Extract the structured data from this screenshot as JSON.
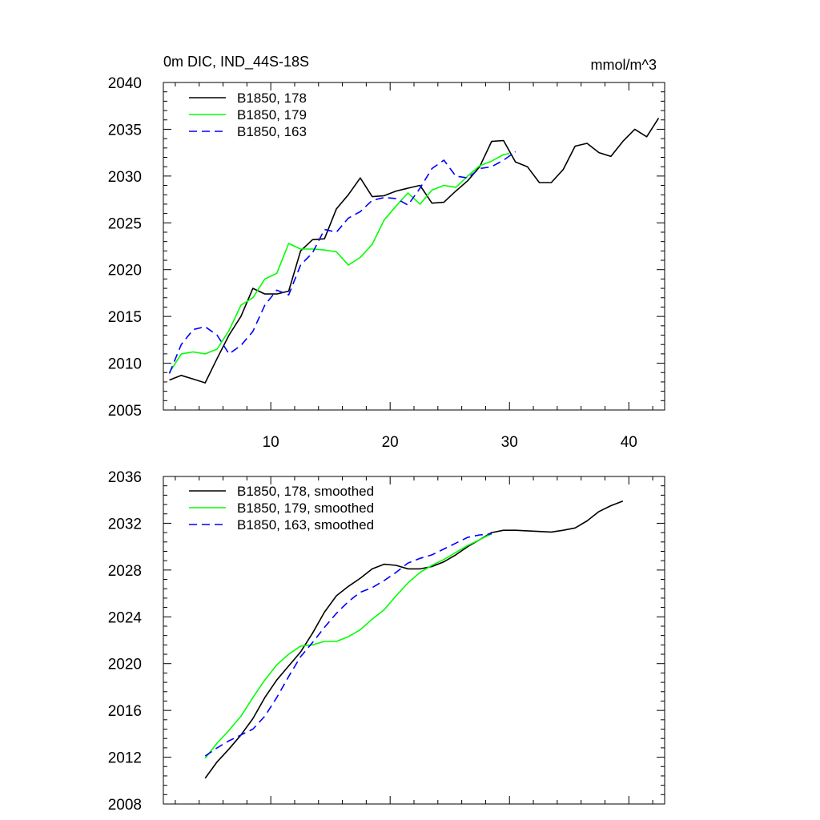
{
  "chart_data": [
    {
      "type": "line",
      "title_left": "0m DIC, IND_44S-18S",
      "title_right": "mmol/m^3",
      "xlim": [
        1,
        43
      ],
      "ylim": [
        2005,
        2040
      ],
      "xticks": [
        10,
        20,
        30,
        40
      ],
      "xtick_labels": [
        "10",
        "20",
        "30",
        "40"
      ],
      "yticks": [
        2005,
        2010,
        2015,
        2020,
        2025,
        2030,
        2035,
        2040
      ],
      "ytick_labels": [
        "2005",
        "2010",
        "2015",
        "2020",
        "2025",
        "2030",
        "2035",
        "2040"
      ],
      "series": [
        {
          "name": "B1850, 178",
          "color": "#000000",
          "dash": "solid",
          "x": [
            1.5,
            2.5,
            3.5,
            4.5,
            5.5,
            6.5,
            7.5,
            8.5,
            9.5,
            10.5,
            11.5,
            12.5,
            13.5,
            14.5,
            15.5,
            16.5,
            17.5,
            18.5,
            19.5,
            20.5,
            21.5,
            22.5,
            23.5,
            24.5,
            25.5,
            26.5,
            27.5,
            28.5,
            29.5,
            30.5,
            31.5,
            32.5,
            33.5,
            34.5,
            35.5,
            36.5,
            37.5,
            38.5,
            39.5,
            40.5,
            41.5,
            42.5
          ],
          "y": [
            2008.2,
            2008.7,
            2008.3,
            2007.9,
            2010.5,
            2013.0,
            2015.0,
            2018.0,
            2017.4,
            2017.4,
            2017.7,
            2022.0,
            2023.2,
            2023.3,
            2026.5,
            2028.0,
            2029.8,
            2027.8,
            2027.9,
            2028.4,
            2028.7,
            2029.0,
            2027.1,
            2027.2,
            2028.4,
            2029.5,
            2031.0,
            2033.7,
            2033.8,
            2031.5,
            2031.0,
            2029.3,
            2029.3,
            2030.7,
            2033.2,
            2033.5,
            2032.5,
            2032.1,
            2033.7,
            2035.0,
            2034.2,
            2036.2
          ]
        },
        {
          "name": "B1850, 179",
          "color": "#00ff00",
          "dash": "solid",
          "x": [
            1.5,
            2.5,
            3.5,
            4.5,
            5.5,
            6.5,
            7.5,
            8.5,
            9.5,
            10.5,
            11.5,
            12.5,
            13.5,
            14.5,
            15.5,
            16.5,
            17.5,
            18.5,
            19.5,
            20.5,
            21.5,
            22.5,
            23.5,
            24.5,
            25.5,
            26.5,
            27.5,
            28.5,
            29.5,
            30.0
          ],
          "y": [
            2009.0,
            2011.0,
            2011.2,
            2011.0,
            2011.5,
            2013.5,
            2016.2,
            2017.0,
            2019.0,
            2019.6,
            2022.8,
            2022.2,
            2022.2,
            2022.1,
            2021.9,
            2020.5,
            2021.3,
            2022.7,
            2025.3,
            2026.8,
            2028.2,
            2027.0,
            2028.5,
            2029.0,
            2028.8,
            2030.0,
            2031.1,
            2031.6,
            2032.3,
            2032.4
          ]
        },
        {
          "name": "B1850, 163",
          "color": "#0000ff",
          "dash": "dashed",
          "x": [
            1.5,
            2.5,
            3.5,
            4.5,
            5.5,
            6.5,
            7.5,
            8.5,
            9.5,
            10.5,
            11.5,
            12.5,
            13.5,
            14.5,
            15.5,
            16.5,
            17.5,
            18.5,
            19.5,
            20.5,
            21.5,
            22.5,
            23.5,
            24.5,
            25.5,
            26.5,
            27.5,
            28.5,
            29.5,
            30.5
          ],
          "y": [
            2008.9,
            2012.0,
            2013.6,
            2013.9,
            2013.0,
            2011.0,
            2011.9,
            2013.4,
            2016.2,
            2017.8,
            2017.3,
            2020.5,
            2021.8,
            2024.3,
            2024.0,
            2025.5,
            2026.2,
            2027.4,
            2027.7,
            2027.6,
            2026.9,
            2028.7,
            2030.8,
            2031.7,
            2030.0,
            2029.8,
            2030.8,
            2031.0,
            2031.7,
            2032.6
          ]
        }
      ]
    },
    {
      "type": "line",
      "xlim": [
        1,
        43
      ],
      "ylim": [
        2008,
        2036
      ],
      "xticks": [
        10,
        20,
        30,
        40
      ],
      "xtick_labels": [],
      "yticks": [
        2008,
        2012,
        2016,
        2020,
        2024,
        2028,
        2032,
        2036
      ],
      "ytick_labels": [
        "2008",
        "2012",
        "2016",
        "2020",
        "2024",
        "2028",
        "2032",
        "2036"
      ],
      "series": [
        {
          "name": "B1850, 178, smoothed",
          "color": "#000000",
          "dash": "solid",
          "x": [
            4.5,
            5.5,
            6.5,
            7.5,
            8.5,
            9.5,
            10.5,
            11.5,
            12.5,
            13.5,
            14.5,
            15.5,
            16.5,
            17.5,
            18.5,
            19.5,
            20.5,
            21.5,
            22.5,
            23.5,
            24.5,
            25.5,
            26.5,
            27.5,
            28.5,
            29.5,
            30.5,
            31.5,
            32.5,
            33.5,
            34.5,
            35.5,
            36.5,
            37.5,
            38.5,
            39.5
          ],
          "y": [
            2010.2,
            2011.6,
            2012.7,
            2013.9,
            2015.3,
            2017.1,
            2018.6,
            2019.8,
            2021.0,
            2022.6,
            2024.4,
            2025.8,
            2026.6,
            2027.3,
            2028.1,
            2028.5,
            2028.4,
            2028.1,
            2028.1,
            2028.3,
            2028.7,
            2029.3,
            2030.0,
            2030.6,
            2031.2,
            2031.4,
            2031.4,
            2031.35,
            2031.3,
            2031.25,
            2031.4,
            2031.6,
            2032.2,
            2033.0,
            2033.5,
            2033.9
          ]
        },
        {
          "name": "B1850, 179, smoothed",
          "color": "#00ff00",
          "dash": "solid",
          "x": [
            4.5,
            5.5,
            6.5,
            7.5,
            8.5,
            9.5,
            10.5,
            11.5,
            12.5,
            13.5,
            14.5,
            15.5,
            16.5,
            17.5,
            18.5,
            19.5,
            20.5,
            21.5,
            22.5,
            23.5,
            24.5,
            25.5,
            26.5,
            27.5,
            28.5
          ],
          "y": [
            2011.9,
            2013.2,
            2014.3,
            2015.5,
            2017.1,
            2018.6,
            2019.9,
            2020.8,
            2021.5,
            2021.6,
            2021.9,
            2021.9,
            2022.3,
            2022.9,
            2023.8,
            2024.6,
            2025.8,
            2026.9,
            2027.8,
            2028.4,
            2028.9,
            2029.5,
            2030.1,
            2030.6,
            2031.1
          ]
        },
        {
          "name": "B1850, 163, smoothed",
          "color": "#0000ff",
          "dash": "dashed",
          "x": [
            4.5,
            5.5,
            6.5,
            7.5,
            8.5,
            9.5,
            10.5,
            11.5,
            12.5,
            13.5,
            14.5,
            15.5,
            16.5,
            17.5,
            18.5,
            19.5,
            20.5,
            21.5,
            22.5,
            23.5,
            24.5,
            25.5,
            26.5,
            27.5,
            28.5
          ],
          "y": [
            2012.1,
            2012.8,
            2013.4,
            2013.9,
            2014.4,
            2015.5,
            2017.1,
            2018.9,
            2020.6,
            2021.8,
            2023.1,
            2024.3,
            2025.3,
            2026.1,
            2026.5,
            2027.1,
            2027.8,
            2028.6,
            2029.0,
            2029.3,
            2029.8,
            2030.3,
            2030.8,
            2031.0,
            2031.1
          ]
        }
      ]
    }
  ]
}
